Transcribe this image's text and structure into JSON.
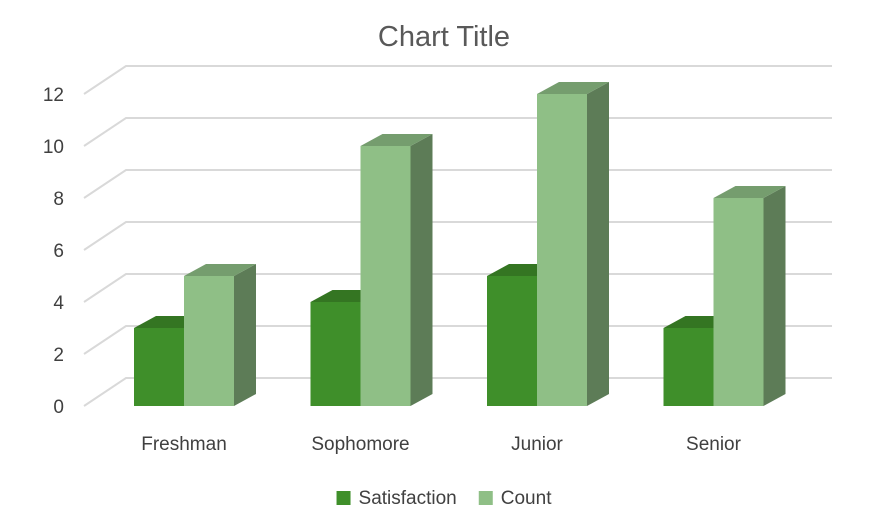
{
  "chart_data": {
    "type": "bar",
    "style": "3d-clustered-column",
    "title": "Chart Title",
    "xlabel": "",
    "ylabel": "",
    "categories": [
      "Freshman",
      "Sophomore",
      "Junior",
      "Senior"
    ],
    "series": [
      {
        "name": "Satisfaction",
        "values": [
          3,
          4,
          5,
          3
        ],
        "color": "#3f8f2a"
      },
      {
        "name": "Count",
        "values": [
          5,
          10,
          12,
          8
        ],
        "color": "#8fbf86"
      }
    ],
    "ylim": [
      0,
      12
    ],
    "yticks": [
      0,
      2,
      4,
      6,
      8,
      10,
      12
    ],
    "grid": true,
    "legend_position": "bottom"
  }
}
